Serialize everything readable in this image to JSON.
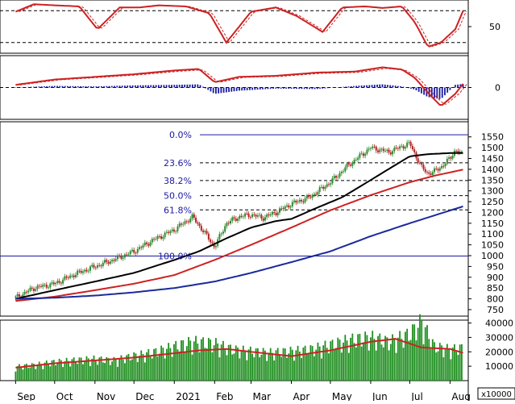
{
  "colors": {
    "price_up": "#2e8b2e",
    "price_down": "#b22222",
    "ma_black": "#000000",
    "ma_red": "#cc2222",
    "ma_blue": "#1a2a9c",
    "fib_line": "#1a1aa0",
    "fib_text": "#1a1aa0",
    "volume_bar": "#1f8f1f",
    "volume_ma": "#cc2222",
    "macd_hist": "#1a1aa0",
    "stoch_line": "#cc2222"
  },
  "x_axis": {
    "labels": [
      "Sep",
      "Oct",
      "Nov",
      "Dec",
      "2021",
      "Feb",
      "Mar",
      "Apr",
      "May",
      "Jun",
      "Jul",
      "Aug"
    ],
    "dates": [
      "2020-09-01",
      "2020-10-01",
      "2020-11-01",
      "2020-12-01",
      "2021-01-01",
      "2021-02-01",
      "2021-03-01",
      "2021-04-01",
      "2021-05-01",
      "2021-06-01",
      "2021-07-01",
      "2021-08-01"
    ]
  },
  "chart_data": [
    {
      "type": "line",
      "panel": "stochastic",
      "y_ticks": [
        50
      ],
      "y_labels": [
        "50"
      ],
      "ylim": [
        0,
        100
      ],
      "grid": true,
      "ref_levels": [
        80,
        20
      ],
      "series": [
        {
          "x": [
            "2020-09-01",
            "2020-09-15",
            "2020-10-01",
            "2020-10-20",
            "2020-11-03",
            "2020-11-20",
            "2020-12-05",
            "2020-12-20",
            "2021-01-10",
            "2021-01-28",
            "2021-02-10",
            "2021-03-01",
            "2021-03-20",
            "2021-04-05",
            "2021-04-25",
            "2021-05-10",
            "2021-05-28",
            "2021-06-10",
            "2021-06-25",
            "2021-07-05",
            "2021-07-15",
            "2021-07-25",
            "2021-08-05",
            "2021-08-12"
          ],
          "values": [
            78,
            92,
            90,
            88,
            45,
            86,
            86,
            90,
            88,
            75,
            20,
            78,
            86,
            70,
            40,
            86,
            88,
            85,
            88,
            58,
            12,
            20,
            45,
            85
          ]
        }
      ]
    },
    {
      "type": "bar",
      "panel": "macd",
      "y_ticks": [
        0
      ],
      "y_labels": [
        "0"
      ],
      "ylim": [
        -60,
        60
      ],
      "series": [
        {
          "x": [
            "2020-09-01",
            "2020-10-01",
            "2020-11-01",
            "2020-12-01",
            "2021-01-01",
            "2021-01-20",
            "2021-02-01",
            "2021-02-20",
            "2021-03-20",
            "2021-04-20",
            "2021-05-20",
            "2021-06-10",
            "2021-06-25",
            "2021-07-05",
            "2021-07-15",
            "2021-07-25",
            "2021-08-05",
            "2021-08-12"
          ],
          "values": [
            5,
            15,
            20,
            25,
            32,
            35,
            10,
            20,
            22,
            28,
            30,
            38,
            34,
            18,
            -10,
            -35,
            -12,
            10
          ]
        },
        {
          "x": [
            "2020-09-01",
            "2020-10-01",
            "2020-11-01",
            "2020-12-01",
            "2021-01-01",
            "2021-01-20",
            "2021-02-01",
            "2021-02-20",
            "2021-03-20",
            "2021-04-20",
            "2021-05-20",
            "2021-06-10",
            "2021-06-25",
            "2021-07-05",
            "2021-07-15",
            "2021-07-25",
            "2021-08-05",
            "2021-08-12"
          ],
          "values": [
            0,
            3,
            2,
            4,
            5,
            6,
            -12,
            -6,
            -2,
            -3,
            3,
            6,
            2,
            -4,
            -18,
            -22,
            5,
            7
          ]
        }
      ]
    },
    {
      "type": "line",
      "panel": "price",
      "ylim": [
        720,
        1620
      ],
      "y_ticks": [
        750,
        800,
        850,
        900,
        950,
        1000,
        1050,
        1100,
        1150,
        1200,
        1250,
        1300,
        1350,
        1400,
        1450,
        1500,
        1550
      ],
      "y_labels": [
        "750",
        "800",
        "850",
        "900",
        "950",
        "1000",
        "1050",
        "1100",
        "1150",
        "1200",
        "1250",
        "1300",
        "1350",
        "1400",
        "1450",
        "1500",
        "1550"
      ],
      "fibonacci": [
        {
          "label": "0.0%",
          "value": 1560
        },
        {
          "label": "23.6%",
          "value": 1430
        },
        {
          "label": "38.2%",
          "value": 1348
        },
        {
          "label": "50.0%",
          "value": 1278
        },
        {
          "label": "61.8%",
          "value": 1212
        },
        {
          "label": "100.0%",
          "value": 998
        }
      ],
      "series": [
        {
          "x": [
            "2020-09-01",
            "2020-09-15",
            "2020-10-01",
            "2020-10-15",
            "2020-11-01",
            "2020-11-15",
            "2020-12-01",
            "2020-12-15",
            "2021-01-01",
            "2021-01-15",
            "2021-01-25",
            "2021-02-01",
            "2021-02-10",
            "2021-02-20",
            "2021-03-01",
            "2021-03-10",
            "2021-03-20",
            "2021-04-01",
            "2021-04-15",
            "2021-05-01",
            "2021-05-15",
            "2021-06-01",
            "2021-06-15",
            "2021-07-01",
            "2021-07-05",
            "2021-07-10",
            "2021-07-15",
            "2021-07-20",
            "2021-07-25",
            "2021-08-01",
            "2021-08-05",
            "2021-08-10"
          ],
          "values": [
            805,
            850,
            870,
            910,
            950,
            980,
            1020,
            1070,
            1120,
            1180,
            1100,
            1040,
            1150,
            1180,
            1190,
            1175,
            1200,
            1240,
            1270,
            1340,
            1420,
            1500,
            1480,
            1520,
            1470,
            1410,
            1380,
            1390,
            1410,
            1450,
            1490,
            1470
          ]
        },
        {
          "x": [
            "2020-09-01",
            "2020-10-01",
            "2020-11-01",
            "2020-12-01",
            "2021-01-01",
            "2021-01-20",
            "2021-02-10",
            "2021-03-01",
            "2021-03-20",
            "2021-04-01",
            "2021-04-20",
            "2021-05-10",
            "2021-06-01",
            "2021-06-20",
            "2021-07-01",
            "2021-07-15",
            "2021-08-01",
            "2021-08-12"
          ],
          "values": [
            800,
            840,
            880,
            920,
            980,
            1020,
            1080,
            1130,
            1160,
            1170,
            1220,
            1270,
            1350,
            1420,
            1460,
            1470,
            1475,
            1475
          ]
        },
        {
          "x": [
            "2020-09-01",
            "2020-10-01",
            "2020-11-01",
            "2020-12-01",
            "2021-01-01",
            "2021-02-01",
            "2021-03-01",
            "2021-04-01",
            "2021-05-01",
            "2021-06-01",
            "2021-07-01",
            "2021-07-20",
            "2021-08-12"
          ],
          "values": [
            790,
            810,
            840,
            870,
            910,
            980,
            1050,
            1130,
            1210,
            1280,
            1340,
            1370,
            1400
          ]
        },
        {
          "x": [
            "2020-09-01",
            "2020-10-01",
            "2020-11-01",
            "2020-12-01",
            "2021-01-01",
            "2021-02-01",
            "2021-03-01",
            "2021-04-01",
            "2021-05-01",
            "2021-06-01",
            "2021-07-01",
            "2021-08-12"
          ],
          "values": [
            800,
            805,
            815,
            830,
            850,
            880,
            920,
            970,
            1020,
            1090,
            1150,
            1230
          ]
        }
      ]
    },
    {
      "type": "bar",
      "panel": "volume",
      "ylim": [
        0,
        42000
      ],
      "y_ticks": [
        10000,
        20000,
        30000,
        40000
      ],
      "y_labels": [
        "10000",
        "20000",
        "30000",
        "40000"
      ],
      "unit_label": "x10000",
      "series": [
        {
          "x": [
            "2020-09-01",
            "2020-09-15",
            "2020-10-01",
            "2020-10-15",
            "2020-11-01",
            "2020-11-15",
            "2020-12-01",
            "2020-12-15",
            "2021-01-01",
            "2021-01-15",
            "2021-02-01",
            "2021-02-15",
            "2021-03-01",
            "2021-03-15",
            "2021-04-01",
            "2021-04-15",
            "2021-05-01",
            "2021-05-15",
            "2021-06-01",
            "2021-06-15",
            "2021-07-01",
            "2021-07-10",
            "2021-07-20",
            "2021-08-01",
            "2021-08-10"
          ],
          "values": [
            9000,
            10000,
            12000,
            13000,
            14000,
            13000,
            16000,
            18000,
            22000,
            25000,
            24000,
            20000,
            19000,
            18000,
            19000,
            20000,
            23000,
            26000,
            28000,
            25000,
            30000,
            38000,
            22000,
            20000,
            21000
          ]
        },
        {
          "x": [
            "2020-09-01",
            "2020-10-01",
            "2020-11-01",
            "2020-12-01",
            "2021-01-01",
            "2021-01-20",
            "2021-02-10",
            "2021-03-01",
            "2021-04-01",
            "2021-05-01",
            "2021-06-01",
            "2021-06-20",
            "2021-07-10",
            "2021-08-01",
            "2021-08-12"
          ],
          "values": [
            9000,
            12000,
            14000,
            16000,
            19000,
            21000,
            22000,
            20000,
            17000,
            21000,
            27000,
            29000,
            23000,
            22000,
            19000
          ]
        }
      ]
    }
  ]
}
